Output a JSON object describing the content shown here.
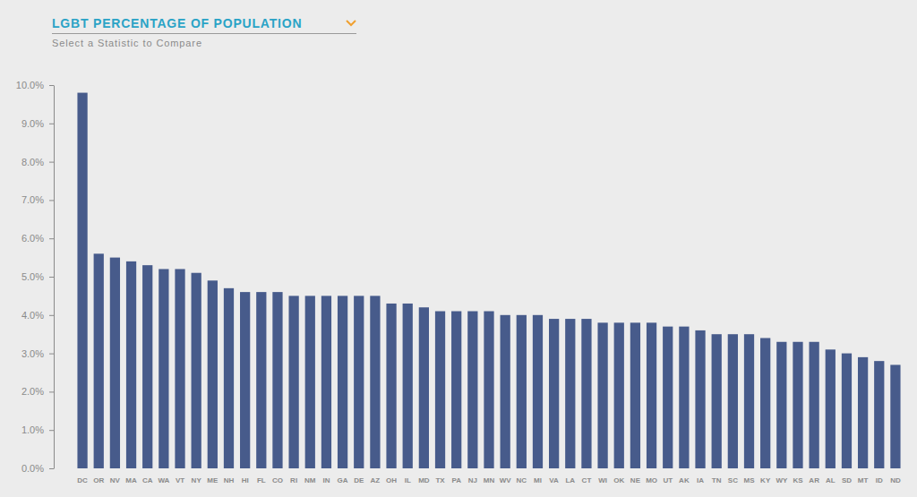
{
  "chart_data": {
    "type": "bar",
    "title": "LGBT PERCENTAGE OF POPULATION",
    "subtitle": "Select a Statistic to Compare",
    "categories": [
      "DC",
      "OR",
      "NV",
      "MA",
      "CA",
      "WA",
      "VT",
      "NY",
      "ME",
      "NH",
      "HI",
      "FL",
      "CO",
      "RI",
      "NM",
      "IN",
      "GA",
      "DE",
      "AZ",
      "OH",
      "IL",
      "MD",
      "TX",
      "PA",
      "NJ",
      "MN",
      "WV",
      "NC",
      "MI",
      "VA",
      "LA",
      "CT",
      "WI",
      "OK",
      "NE",
      "MO",
      "UT",
      "AK",
      "IA",
      "TN",
      "SC",
      "MS",
      "KY",
      "WY",
      "KS",
      "AR",
      "AL",
      "SD",
      "MT",
      "ID",
      "ND"
    ],
    "values": [
      9.8,
      5.6,
      5.5,
      5.4,
      5.3,
      5.2,
      5.2,
      5.1,
      4.9,
      4.7,
      4.6,
      4.6,
      4.6,
      4.5,
      4.5,
      4.5,
      4.5,
      4.5,
      4.5,
      4.3,
      4.3,
      4.2,
      4.1,
      4.1,
      4.1,
      4.1,
      4.0,
      4.0,
      4.0,
      3.9,
      3.9,
      3.9,
      3.8,
      3.8,
      3.8,
      3.8,
      3.7,
      3.7,
      3.6,
      3.5,
      3.5,
      3.5,
      3.4,
      3.3,
      3.3,
      3.3,
      3.1,
      3.0,
      2.9,
      2.8,
      2.7
    ],
    "color": "#475b8b",
    "ylim": [
      0,
      10
    ],
    "yticks": [
      {
        "value": 0,
        "label": "0.0%"
      },
      {
        "value": 1,
        "label": "1.0%"
      },
      {
        "value": 2,
        "label": "2.0%"
      },
      {
        "value": 3,
        "label": "3.0%"
      },
      {
        "value": 4,
        "label": "4.0%"
      },
      {
        "value": 5,
        "label": "5.0%"
      },
      {
        "value": 6,
        "label": "6.0%"
      },
      {
        "value": 7,
        "label": "7.0%"
      },
      {
        "value": 8,
        "label": "8.0%"
      },
      {
        "value": 9,
        "label": "9.0%"
      },
      {
        "value": 10,
        "label": "10.0%"
      }
    ],
    "grid": false
  }
}
